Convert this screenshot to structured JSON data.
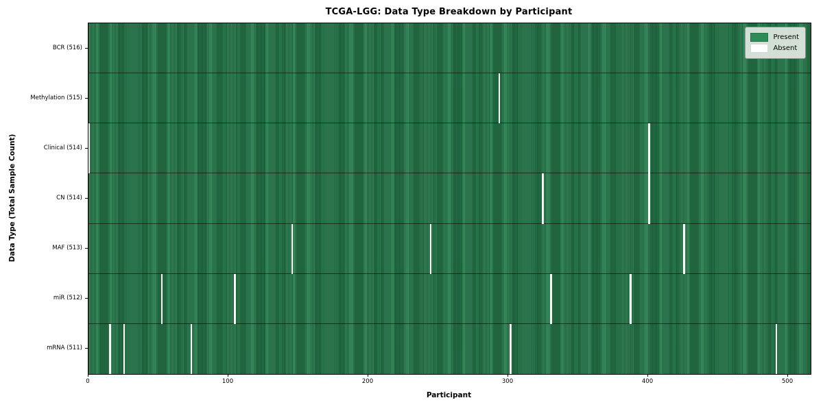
{
  "chart_data": {
    "type": "heatmap",
    "title": "TCGA-LGG: Data Type Breakdown by Participant",
    "xlabel": "Participant",
    "ylabel": "Data Type (Total Sample Count)",
    "x_ticks": [
      0,
      100,
      200,
      300,
      400,
      500
    ],
    "x_range": [
      0,
      516
    ],
    "n_participants": 516,
    "rows": [
      {
        "label": "BCR (516)",
        "data_type": "BCR",
        "total_samples": 516,
        "absent_participants": []
      },
      {
        "label": "Methylation (515)",
        "data_type": "Methylation",
        "total_samples": 515,
        "absent_participants": [
          293
        ]
      },
      {
        "label": "Clinical (514)",
        "data_type": "Clinical",
        "total_samples": 514,
        "absent_participants": [
          0,
          400
        ]
      },
      {
        "label": "CN (514)",
        "data_type": "CN",
        "total_samples": 514,
        "absent_participants": [
          324,
          400
        ]
      },
      {
        "label": "MAF (513)",
        "data_type": "MAF",
        "total_samples": 513,
        "absent_participants": [
          145,
          244,
          425
        ]
      },
      {
        "label": "miR (512)",
        "data_type": "miR",
        "total_samples": 512,
        "absent_participants": [
          52,
          104,
          330,
          387
        ]
      },
      {
        "label": "mRNA (511)",
        "data_type": "mRNA",
        "total_samples": 511,
        "absent_participants": [
          15,
          25,
          73,
          301,
          491
        ]
      }
    ],
    "legend": {
      "position": "upper right",
      "entries": [
        {
          "label": "Present",
          "color": "#2e8b57"
        },
        {
          "label": "Absent",
          "color": "#ffffff"
        }
      ]
    },
    "colors": {
      "present": "#2e8b57",
      "absent": "#ffffff",
      "cell_edge": "#123a24",
      "plot_border": "#000000"
    },
    "grid": false
  }
}
